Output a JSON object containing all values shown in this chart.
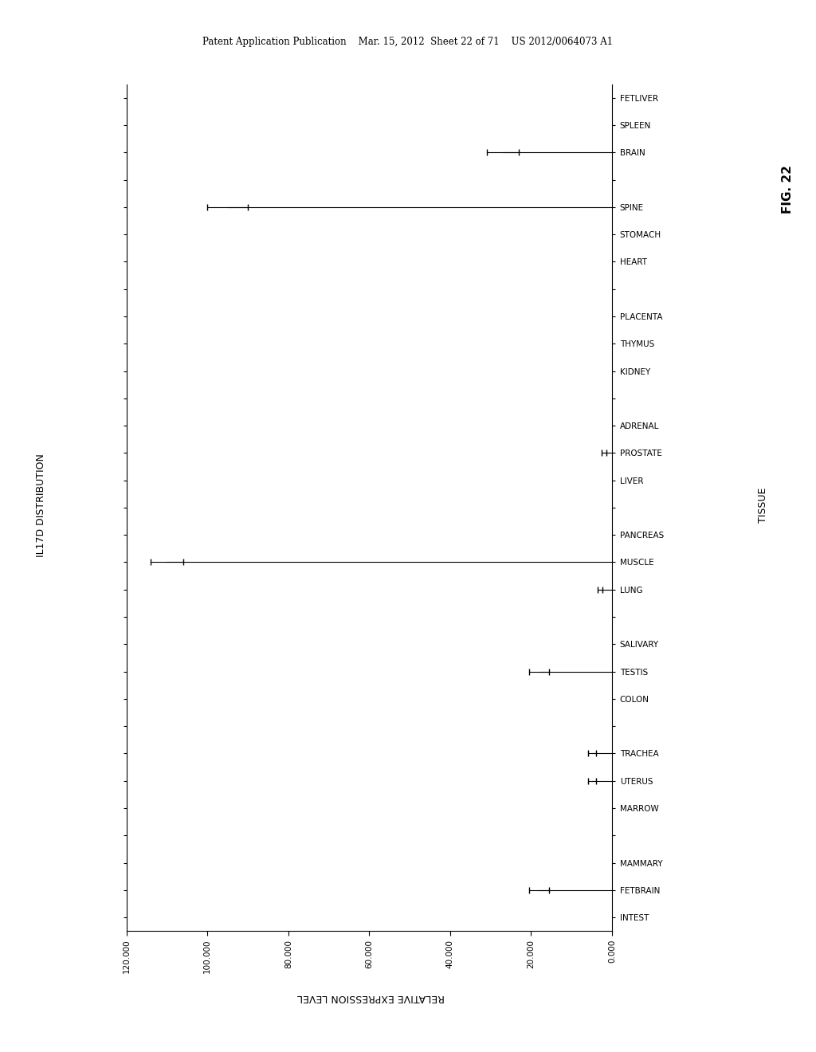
{
  "title_header": "Patent Application Publication    Mar. 15, 2012  Sheet 22 of 71    US 2012/0064073 A1",
  "fig_label": "FIG. 22",
  "ylabel_left": "IL17D DISTRIBUTION",
  "xlabel_bottom": "RELATIVE EXPRESSION LEVEL",
  "ylabel_right": "TISSUE",
  "xlim_left": 120000,
  "xlim_right": 0,
  "xtick_values": [
    120000,
    100000,
    80000,
    60000,
    40000,
    20000,
    0
  ],
  "xtick_labels": [
    "120.000",
    "100.000",
    "80.000",
    "60.000",
    "40.000",
    "20.000",
    "0.000"
  ],
  "tissues": [
    "FETLIVER",
    "SPLEEN",
    "BRAIN",
    "",
    "SPINE",
    "STOMACH",
    "HEART",
    "",
    "PLACENTA",
    "THYMUS",
    "KIDNEY",
    "",
    "ADRENAL",
    "PROSTATE",
    "LIVER",
    "",
    "PANCREAS",
    "MUSCLE",
    "LUNG",
    "",
    "SALIVARY",
    "TESTIS",
    "COLON",
    "",
    "TRACHEA",
    "UTERUS",
    "MARROW",
    "",
    "MAMMARY",
    "FETBRAIN",
    "INTEST"
  ],
  "bar_values": {
    "FETLIVER": 0,
    "SPLEEN": 0,
    "BRAIN": 27000,
    "SPINE": 95000,
    "STOMACH": 0,
    "HEART": 0,
    "PLACENTA": 0,
    "THYMUS": 0,
    "KIDNEY": 0,
    "ADRENAL": 0,
    "PROSTATE": 2000,
    "LIVER": 0,
    "PANCREAS": 0,
    "MUSCLE": 110000,
    "LUNG": 3000,
    "SALIVARY": 0,
    "TESTIS": 18000,
    "COLON": 0,
    "TRACHEA": 5000,
    "UTERUS": 5000,
    "MARROW": 0,
    "MAMMARY": 0,
    "FETBRAIN": 18000,
    "INTEST": 0
  },
  "bar_errors": {
    "FETLIVER": 0,
    "SPLEEN": 0,
    "BRAIN": 4000,
    "SPINE": 5000,
    "STOMACH": 0,
    "HEART": 0,
    "PLACENTA": 0,
    "THYMUS": 0,
    "KIDNEY": 0,
    "ADRENAL": 0,
    "PROSTATE": 600,
    "LIVER": 0,
    "PANCREAS": 0,
    "MUSCLE": 4000,
    "LUNG": 600,
    "SALIVARY": 0,
    "TESTIS": 2500,
    "COLON": 0,
    "TRACHEA": 1000,
    "UTERUS": 1000,
    "MARROW": 0,
    "MAMMARY": 0,
    "FETBRAIN": 2500,
    "INTEST": 0
  },
  "background_color": "#ffffff"
}
